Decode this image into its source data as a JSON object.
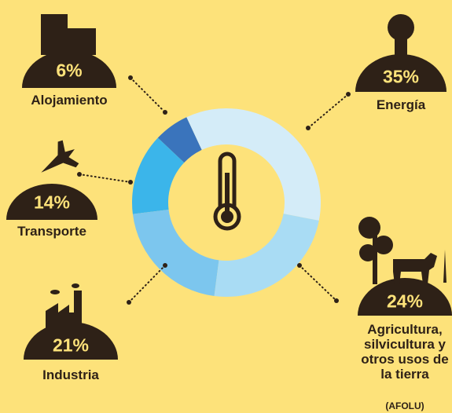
{
  "chart_data": {
    "type": "donut",
    "categories": [
      "Energía",
      "Agricultura, silvicultura y otros usos de la tierra",
      "Industria",
      "Transporte",
      "Alojamiento"
    ],
    "category_note": "(AFOLU)",
    "values": [
      35,
      24,
      21,
      14,
      6
    ],
    "value_labels": [
      "35%",
      "24%",
      "21%",
      "14%",
      "6%"
    ],
    "colors": [
      "#d4ecf8",
      "#a9dcf4",
      "#7cc6ee",
      "#3bb5ea",
      "#3a74bc"
    ]
  }
}
